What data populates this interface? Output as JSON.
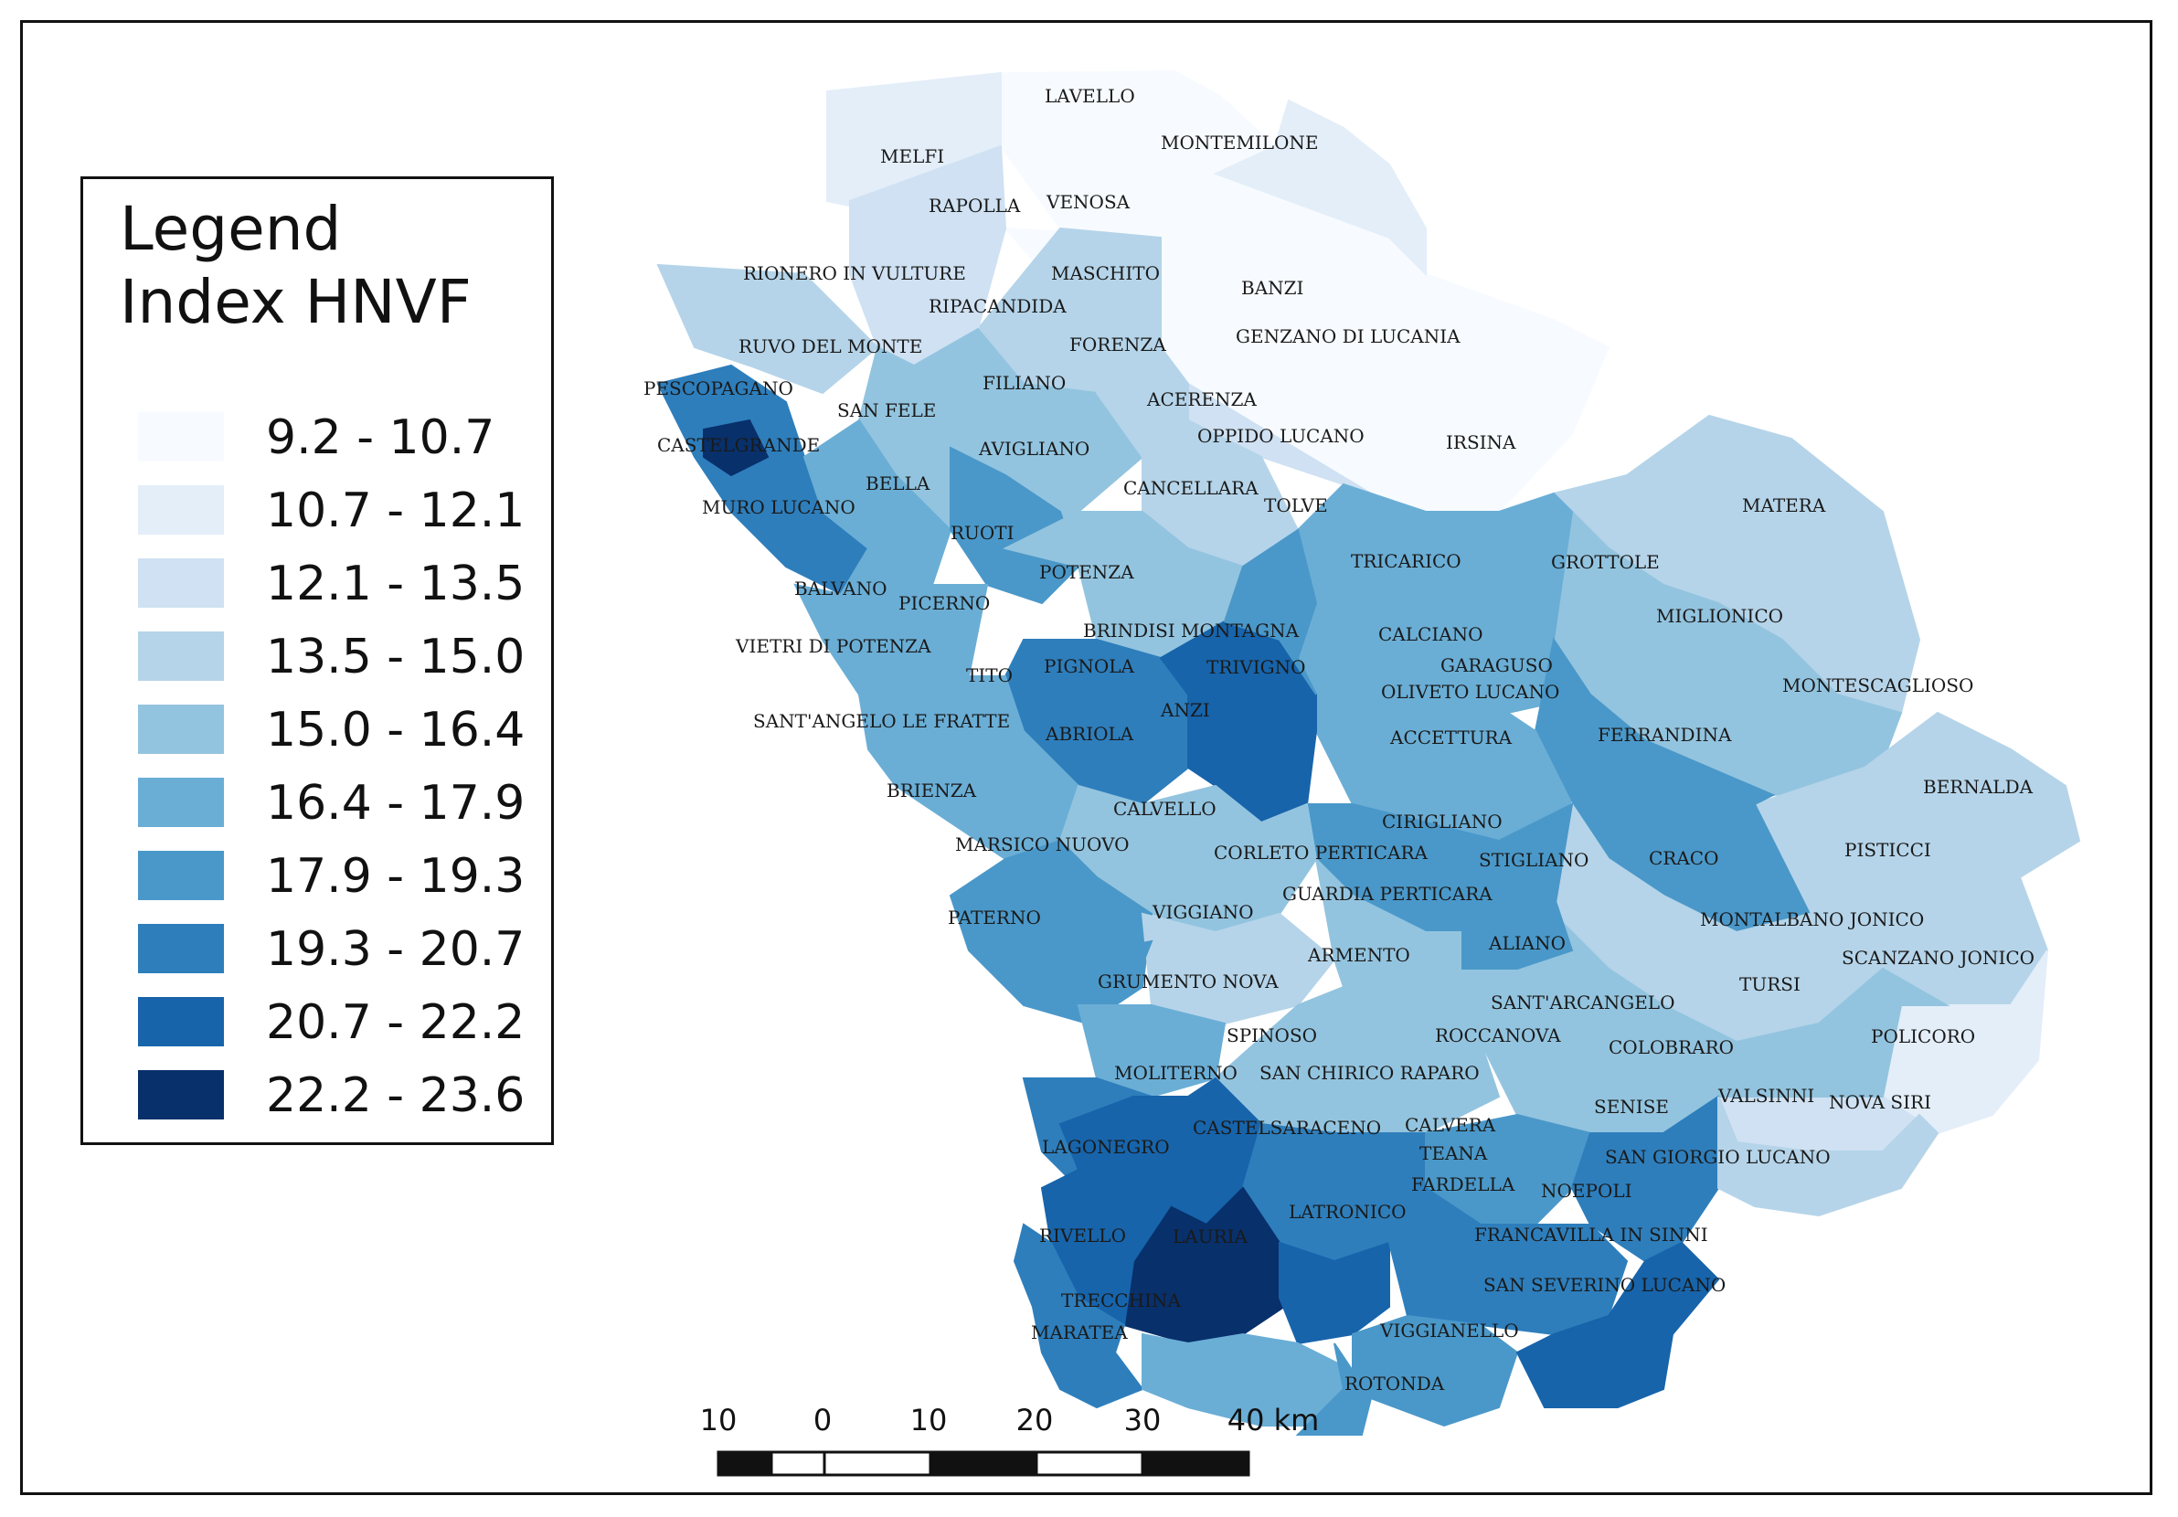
{
  "legend": {
    "title_line1": "Legend",
    "title_line2": "Index HNVF",
    "classes": [
      {
        "label": "9.2 - 10.7",
        "color": "#f7fbff"
      },
      {
        "label": "10.7 - 12.1",
        "color": "#e3eef9"
      },
      {
        "label": "12.1 - 13.5",
        "color": "#cfe1f2"
      },
      {
        "label": "13.5 - 15.0",
        "color": "#b5d4e9"
      },
      {
        "label": "15.0 - 16.4",
        "color": "#93c4df"
      },
      {
        "label": "16.4 - 17.9",
        "color": "#6aaed6"
      },
      {
        "label": "17.9 - 19.3",
        "color": "#4a98c9"
      },
      {
        "label": "19.3 - 20.7",
        "color": "#2e7ebc"
      },
      {
        "label": "20.7 - 22.2",
        "color": "#1764ab"
      },
      {
        "label": "22.2 - 23.6",
        "color": "#08306b"
      }
    ]
  },
  "scale_bar": {
    "ticks": [
      "10",
      "0",
      "10",
      "20",
      "30",
      "40 km"
    ]
  },
  "municipalities": [
    "LAVELLO",
    "MONTEMILONE",
    "MELFI",
    "RAPOLLA",
    "VENOSA",
    "RIONERO IN VULTURE",
    "MASCHITO",
    "BANZI",
    "RIPACANDIDA",
    "RUVO DEL MONTE",
    "FORENZA",
    "GENZANO DI LUCANIA",
    "PESCOPAGANO",
    "FILIANO",
    "SAN FELE",
    "ACERENZA",
    "OPPIDO LUCANO",
    "IRSINA",
    "CASTELGRANDE",
    "AVIGLIANO",
    "BELLA",
    "CANCELLARA",
    "TOLVE",
    "MURO LUCANO",
    "RUOTI",
    "MATERA",
    "POTENZA",
    "TRICARICO",
    "GROTTOLE",
    "BALVANO",
    "PICERNO",
    "MIGLIONICO",
    "BRINDISI MONTAGNA",
    "CALCIANO",
    "VIETRI DI POTENZA",
    "GARAGUSO",
    "TITO",
    "PIGNOLA",
    "TRIVIGNO",
    "MONTESCAGLIOSO",
    "OLIVETO LUCANO",
    "SANT'ANGELO LE FRATTE",
    "ABRIOLA",
    "ANZI",
    "ACCETTURA",
    "FERRANDINA",
    "BRIENZA",
    "BERNALDA",
    "CALVELLO",
    "CIRIGLIANO",
    "MARSICO NUOVO",
    "PISTICCI",
    "CORLETO PERTICARA",
    "STIGLIANO",
    "CRACO",
    "GUARDIA PERTICARA",
    "PATERNO",
    "VIGGIANO",
    "MONTALBANO JONICO",
    "ALIANO",
    "SCANZANO JONICO",
    "ARMENTO",
    "GRUMENTO NOVA",
    "TURSI",
    "SANT'ARCANGELO",
    "SPINOSO",
    "ROCCANOVA",
    "POLICORO",
    "COLOBRARO",
    "MOLITERNO",
    "SAN CHIRICO RAPARO",
    "VALSINNI",
    "NOVA SIRI",
    "SENISE",
    "CASTELSARACENO",
    "CALVERA",
    "LAGONEGRO",
    "TEANA",
    "SAN GIORGIO LUCANO",
    "FARDELLA",
    "NOEPOLI",
    "LATRONICO",
    "RIVELLO",
    "LAURIA",
    "FRANCAVILLA IN SINNI",
    "SAN SEVERINO LUCANO",
    "TRECCHINA",
    "MARATEA",
    "VIGGIANELLO",
    "ROTONDA"
  ]
}
